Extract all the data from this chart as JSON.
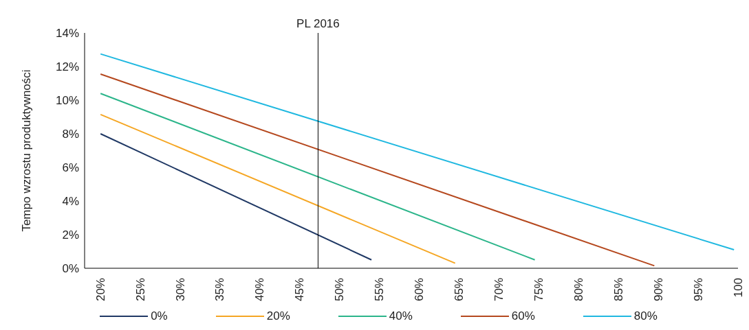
{
  "chart_data": {
    "type": "line",
    "ylabel": "Tempo wzrostu produktywności",
    "xlim": [
      18,
      100
    ],
    "xticks": [
      {
        "value": 20,
        "label": "20%"
      },
      {
        "value": 25,
        "label": "25%"
      },
      {
        "value": 30,
        "label": "30%"
      },
      {
        "value": 35,
        "label": "35%"
      },
      {
        "value": 40,
        "label": "40%"
      },
      {
        "value": 45,
        "label": "45%"
      },
      {
        "value": 50,
        "label": "50%"
      },
      {
        "value": 55,
        "label": "55%"
      },
      {
        "value": 60,
        "label": "60%"
      },
      {
        "value": 65,
        "label": "65%"
      },
      {
        "value": 70,
        "label": "70%"
      },
      {
        "value": 75,
        "label": "75%"
      },
      {
        "value": 80,
        "label": "80%"
      },
      {
        "value": 85,
        "label": "85%"
      },
      {
        "value": 90,
        "label": "90%"
      },
      {
        "value": 95,
        "label": "95%"
      },
      {
        "value": 100,
        "label": "100"
      }
    ],
    "ylim": [
      0,
      14
    ],
    "yticks": [
      {
        "value": 0,
        "label": "0%"
      },
      {
        "value": 2,
        "label": "2%"
      },
      {
        "value": 4,
        "label": "4%"
      },
      {
        "value": 6,
        "label": "6%"
      },
      {
        "value": 8,
        "label": "8%"
      },
      {
        "value": 10,
        "label": "10%"
      },
      {
        "value": 12,
        "label": "12%"
      },
      {
        "value": 14,
        "label": "14%"
      }
    ],
    "series": [
      {
        "name": "0%",
        "color": "#1f3864",
        "x": [
          20,
          54
        ],
        "values": [
          8.0,
          0.5
        ]
      },
      {
        "name": "20%",
        "color": "#f5a623",
        "x": [
          20,
          64.5
        ],
        "values": [
          9.15,
          0.3
        ]
      },
      {
        "name": "40%",
        "color": "#2bb58a",
        "x": [
          20,
          74.5
        ],
        "values": [
          10.4,
          0.5
        ]
      },
      {
        "name": "60%",
        "color": "#b5481e",
        "x": [
          20,
          89.5
        ],
        "values": [
          11.55,
          0.15
        ]
      },
      {
        "name": "80%",
        "color": "#1fb8e0",
        "x": [
          20,
          99.5
        ],
        "values": [
          12.75,
          1.1
        ]
      }
    ],
    "ref_lines": [
      {
        "axis": "x",
        "value": 47.3,
        "label": "PL 2016",
        "color": "#000000"
      }
    ],
    "grid": false,
    "legend": "bottom",
    "marker": "none",
    "line_style": "solid"
  }
}
